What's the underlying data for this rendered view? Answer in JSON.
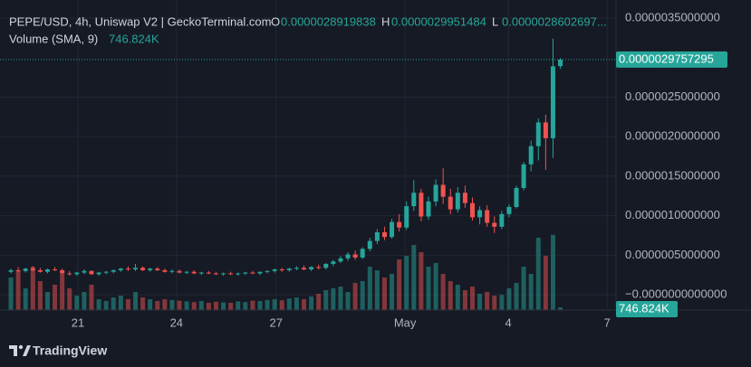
{
  "chart_data": {
    "type": "candlestick",
    "title": "PEPE/USD, 4h, Uniswap V2 | GeckoTerminal.com",
    "legend": [
      {
        "key": "O",
        "label": "0.0000028919838"
      },
      {
        "key": "H",
        "label": "0.0000029951484"
      },
      {
        "key": "L",
        "label": "0.0000028602697..."
      }
    ],
    "volume_title": "Volume (SMA, 9)",
    "volume_label": "746.824K",
    "last_price_label": "0.0000029757295",
    "up_color": "#26a69a",
    "down_color": "#ef5350",
    "grid": true,
    "xlim": [
      -0.5,
      82.6
    ],
    "xticks": [
      {
        "value": 9.15,
        "label": "21"
      },
      {
        "value": 22.6,
        "label": "24"
      },
      {
        "value": 36.2,
        "label": "27"
      },
      {
        "value": 53.8,
        "label": "May"
      },
      {
        "value": 67.9,
        "label": "4"
      },
      {
        "value": 81.4,
        "label": "7"
      }
    ],
    "ylim": [
      -1.94e-07,
      3.729e-06
    ],
    "yticks": [
      {
        "value": 3.5e-06,
        "label": "0.0000035000000"
      },
      {
        "value": 2.5e-06,
        "label": "0.0000025000000"
      },
      {
        "value": 2e-06,
        "label": "0.0000020000000"
      },
      {
        "value": 1.5e-06,
        "label": "0.0000015000000"
      },
      {
        "value": 1e-06,
        "label": "0.0000010000000"
      },
      {
        "value": 5e-07,
        "label": "0.0000005000000"
      },
      {
        "value": 0,
        "label": "−0.0000000000000"
      }
    ],
    "volume_lim": [
      0,
      25000
    ],
    "open": [
      2.9e-07,
      3.1e-07,
      3e-07,
      3.3e-07,
      3.1e-07,
      2.9e-07,
      3.2e-07,
      3.1e-07,
      2.7e-07,
      2.6e-07,
      2.8e-07,
      3e-07,
      2.6e-07,
      2.8e-07,
      2.9e-07,
      3.1e-07,
      3.3e-07,
      3.2e-07,
      3.4e-07,
      3.1e-07,
      3.3e-07,
      3.1e-07,
      2.9e-07,
      3e-07,
      2.8e-07,
      2.9e-07,
      2.7e-07,
      2.8e-07,
      2.7e-07,
      2.6e-07,
      2.7e-07,
      2.6e-07,
      2.7e-07,
      2.8e-07,
      2.7e-07,
      2.9e-07,
      3e-07,
      3.2e-07,
      3.1e-07,
      3.3e-07,
      3.4e-07,
      3.2e-07,
      3.5e-07,
      3.4e-07,
      3.9e-07,
      4.2e-07,
      4.6e-07,
      5.1e-07,
      4.7e-07,
      5.8e-07,
      6.8e-07,
      7.9e-07,
      7.3e-07,
      9.2e-07,
      8.5e-07,
      1.12e-06,
      1.29e-06,
      9.9e-07,
      1.18e-06,
      1.39e-06,
      1.24e-06,
      1.08e-06,
      1.29e-06,
      1.16e-06,
      9.8e-07,
      1.07e-06,
      9.1e-07,
      8.6e-07,
      1.02e-06,
      1.11e-06,
      1.35e-06,
      1.65e-06,
      1.88e-06,
      2.18e-06,
      1.98e-06,
      2.8919838e-06
    ],
    "high": [
      3.3e-07,
      3.5e-07,
      3.4e-07,
      3.6e-07,
      3.4e-07,
      3.3e-07,
      3.5e-07,
      3.3e-07,
      3e-07,
      2.9e-07,
      3.2e-07,
      3.1e-07,
      2.9e-07,
      3e-07,
      3.2e-07,
      3.4e-07,
      3.6e-07,
      3.9e-07,
      3.6e-07,
      3.4e-07,
      3.5e-07,
      3.3e-07,
      3.2e-07,
      3.2e-07,
      3e-07,
      3.1e-07,
      2.9e-07,
      3e-07,
      2.9e-07,
      2.8e-07,
      2.9e-07,
      2.8e-07,
      2.9e-07,
      3e-07,
      2.9e-07,
      3.1e-07,
      3.3e-07,
      3.4e-07,
      3.4e-07,
      3.6e-07,
      3.7e-07,
      3.6e-07,
      3.8e-07,
      4e-07,
      4.4e-07,
      4.9e-07,
      5.4e-07,
      5.6e-07,
      6e-07,
      7.2e-07,
      8.3e-07,
      8.6e-07,
      9.6e-07,
      1.02e-06,
      1.18e-06,
      1.45e-06,
      1.34e-06,
      1.24e-06,
      1.46e-06,
      1.6e-06,
      1.34e-06,
      1.36e-06,
      1.38e-06,
      1.23e-06,
      1.12e-06,
      1.13e-06,
      9.9e-07,
      1.06e-06,
      1.14e-06,
      1.38e-06,
      1.68e-06,
      1.95e-06,
      2.23e-06,
      2.28e-06,
      3.24e-06,
      2.9951484e-06
    ],
    "low": [
      2.7e-07,
      2.9e-07,
      2.8e-07,
      3e-07,
      2.8e-07,
      2.7e-07,
      3e-07,
      2.6e-07,
      2.4e-07,
      2.4e-07,
      2.6e-07,
      2.5e-07,
      2.4e-07,
      2.6e-07,
      2.7e-07,
      2.9e-07,
      3e-07,
      3e-07,
      3e-07,
      2.9e-07,
      3e-07,
      2.8e-07,
      2.7e-07,
      2.7e-07,
      2.6e-07,
      2.6e-07,
      2.5e-07,
      2.6e-07,
      2.5e-07,
      2.4e-07,
      2.5e-07,
      2.4e-07,
      2.5e-07,
      2.6e-07,
      2.5e-07,
      2.7e-07,
      2.8e-07,
      2.9e-07,
      2.9e-07,
      3.1e-07,
      3.1e-07,
      3e-07,
      3.2e-07,
      3.2e-07,
      3.6e-07,
      4e-07,
      4.3e-07,
      4.4e-07,
      4.5e-07,
      5.5e-07,
      6.4e-07,
      6.9e-07,
      7.1e-07,
      8e-07,
      8.2e-07,
      1.06e-06,
      9.3e-07,
      9.5e-07,
      1.12e-06,
      1.15e-06,
      1.02e-06,
      1.04e-06,
      1.1e-06,
      9.4e-07,
      8.9e-07,
      8.6e-07,
      7.8e-07,
      8.3e-07,
      9.8e-07,
      1.09e-06,
      1.32e-06,
      1.56e-06,
      1.7e-06,
      1.58e-06,
      1.73e-06,
      2.8602697e-06
    ],
    "close": [
      3.1e-07,
      3e-07,
      3.3e-07,
      3.1e-07,
      2.9e-07,
      3.2e-07,
      3.1e-07,
      2.7e-07,
      2.6e-07,
      2.8e-07,
      3e-07,
      2.6e-07,
      2.8e-07,
      2.9e-07,
      3.1e-07,
      3.3e-07,
      3.2e-07,
      3.4e-07,
      3.1e-07,
      3.3e-07,
      3.1e-07,
      2.9e-07,
      3e-07,
      2.8e-07,
      2.9e-07,
      2.7e-07,
      2.8e-07,
      2.7e-07,
      2.6e-07,
      2.7e-07,
      2.6e-07,
      2.7e-07,
      2.8e-07,
      2.7e-07,
      2.9e-07,
      3e-07,
      3.2e-07,
      3.1e-07,
      3.3e-07,
      3.4e-07,
      3.2e-07,
      3.5e-07,
      3.4e-07,
      3.9e-07,
      4.2e-07,
      4.6e-07,
      5.1e-07,
      4.7e-07,
      5.8e-07,
      6.8e-07,
      7.9e-07,
      7.3e-07,
      9.2e-07,
      8.5e-07,
      1.12e-06,
      1.29e-06,
      9.9e-07,
      1.18e-06,
      1.39e-06,
      1.24e-06,
      1.08e-06,
      1.29e-06,
      1.16e-06,
      9.8e-07,
      1.07e-06,
      9.1e-07,
      8.6e-07,
      1.02e-06,
      1.11e-06,
      1.35e-06,
      1.65e-06,
      1.88e-06,
      2.18e-06,
      1.98e-06,
      2.89e-06,
      2.9757295e-06
    ],
    "volume": [
      9000,
      11000,
      6000,
      12000,
      8000,
      5000,
      7000,
      10000,
      6000,
      4000,
      5000,
      7000,
      3000,
      2500,
      3500,
      4000,
      3000,
      5000,
      3500,
      3000,
      2500,
      3000,
      2800,
      2600,
      2400,
      2200,
      2500,
      2000,
      2300,
      2100,
      2000,
      2400,
      2200,
      2600,
      2500,
      2800,
      3000,
      2700,
      3200,
      3500,
      3000,
      3800,
      4500,
      5500,
      6000,
      6500,
      5000,
      7500,
      8000,
      12000,
      11000,
      9000,
      10000,
      14000,
      15000,
      18000,
      16000,
      12000,
      13000,
      10000,
      8000,
      7000,
      5500,
      6500,
      4500,
      5000,
      4000,
      4200,
      6000,
      7500,
      12000,
      10000,
      20000,
      15000,
      20800,
      746.824
    ]
  },
  "brand": "TradingView"
}
